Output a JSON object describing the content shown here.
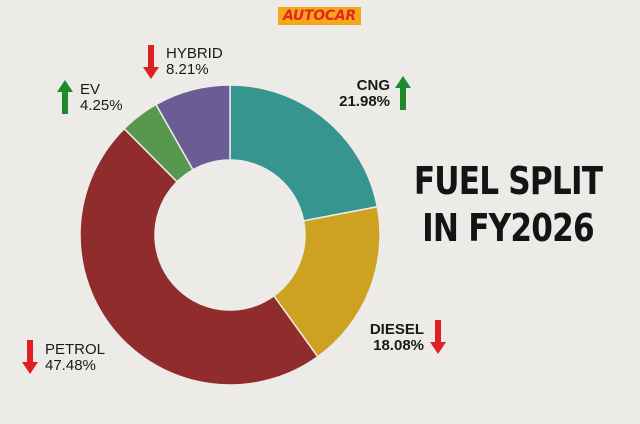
{
  "brand": "AUTOCAR",
  "title_lines": [
    "FUEL SPLIT",
    "IN FY2026"
  ],
  "chart_data": {
    "type": "pie",
    "donut": true,
    "title": "FUEL SPLIT IN FY2026",
    "categories": [
      "CNG",
      "DIESEL",
      "PETROL",
      "EV",
      "HYBRID"
    ],
    "values": [
      21.98,
      18.08,
      47.48,
      4.25,
      8.21
    ],
    "value_labels": [
      "21.98%",
      "18.08%",
      "47.48%",
      "4.25%",
      "8.21%"
    ],
    "trend": [
      "up",
      "down",
      "down",
      "up",
      "down"
    ],
    "colors": [
      "#37958f",
      "#cda220",
      "#912c2c",
      "#58974e",
      "#6a5c94"
    ],
    "trend_colors": {
      "up": "#1f8a2b",
      "down": "#e02020"
    }
  }
}
